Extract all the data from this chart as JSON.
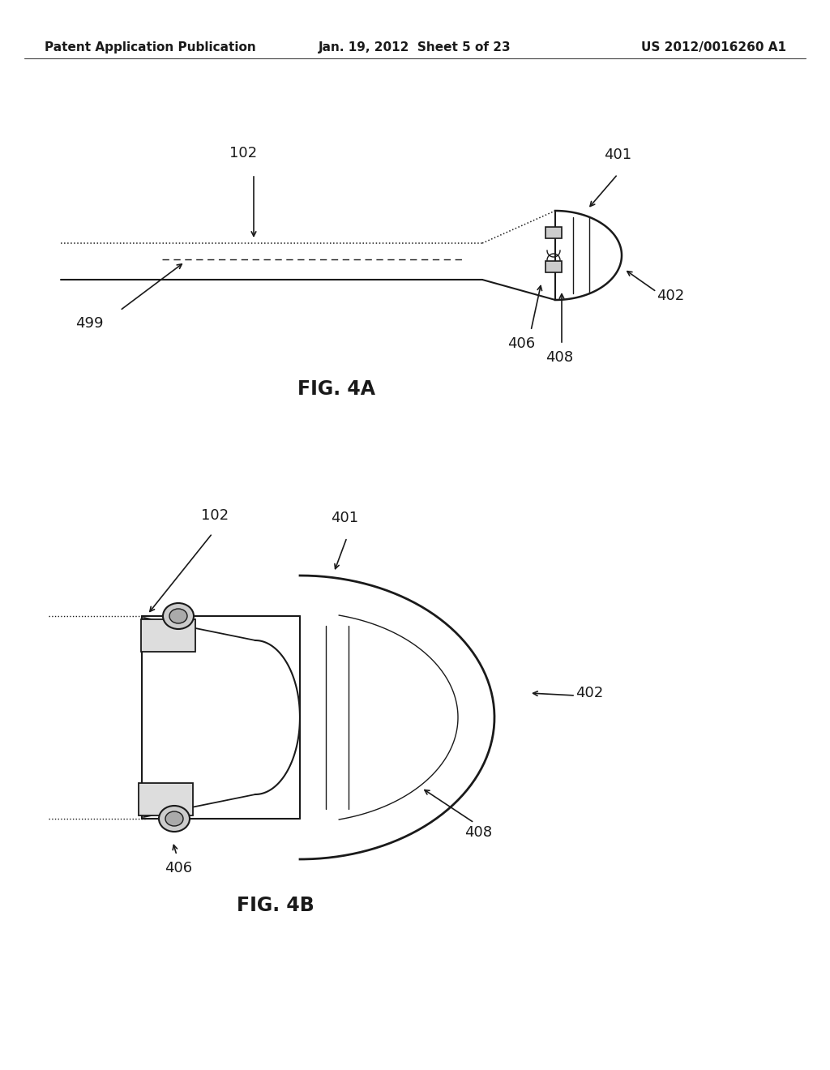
{
  "bg_color": "#ffffff",
  "header_left": "Patent Application Publication",
  "header_mid": "Jan. 19, 2012  Sheet 5 of 23",
  "header_right": "US 2012/0016260 A1",
  "fig4a_label": "FIG. 4A",
  "fig4b_label": "FIG. 4B",
  "line_color": "#1a1a1a",
  "text_color": "#1a1a1a"
}
